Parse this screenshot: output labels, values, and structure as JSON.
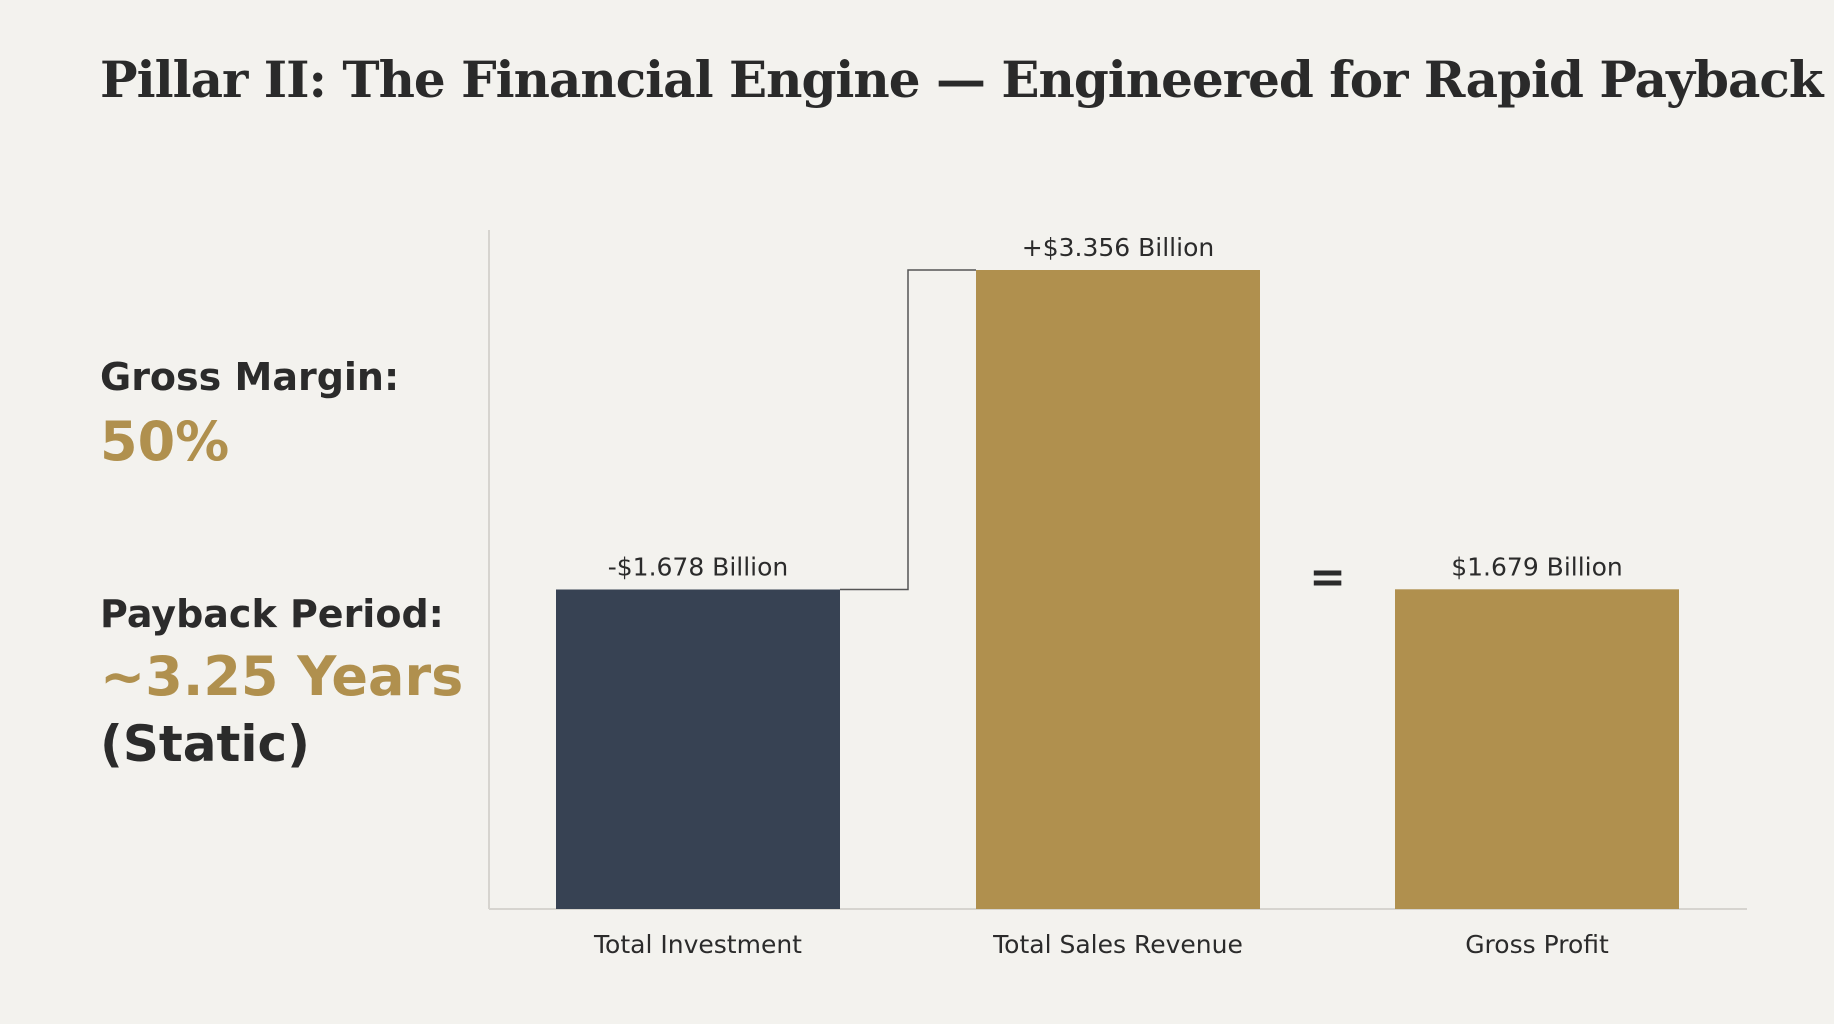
{
  "title": "Pillar II: The Financial Engine — Engineered for Rapid Payback",
  "kpis": {
    "gross_margin_label": "Gross Margin:",
    "gross_margin_value": "50%",
    "payback_label": "Payback Period:",
    "payback_value": "~3.25 Years",
    "payback_note": "(Static)"
  },
  "colors": {
    "background": "#f3f2ee",
    "investment": "#374253",
    "gold": "#b0904e"
  },
  "chart_data": {
    "type": "bar",
    "subtype": "waterfall",
    "categories": [
      "Total Investment",
      "Total Sales Revenue",
      "Gross Profit"
    ],
    "values": [
      1.678,
      3.356,
      1.679
    ],
    "units": "Billion USD",
    "data_labels": [
      "-$1.678 Billion",
      "+$3.356 Billion",
      "$1.679 Billion"
    ],
    "colors": [
      "#374253",
      "#b0904e",
      "#b0904e"
    ],
    "operator": "=",
    "ylim": [
      0,
      3.356
    ],
    "grid": false,
    "xlabel": "",
    "ylabel": ""
  }
}
